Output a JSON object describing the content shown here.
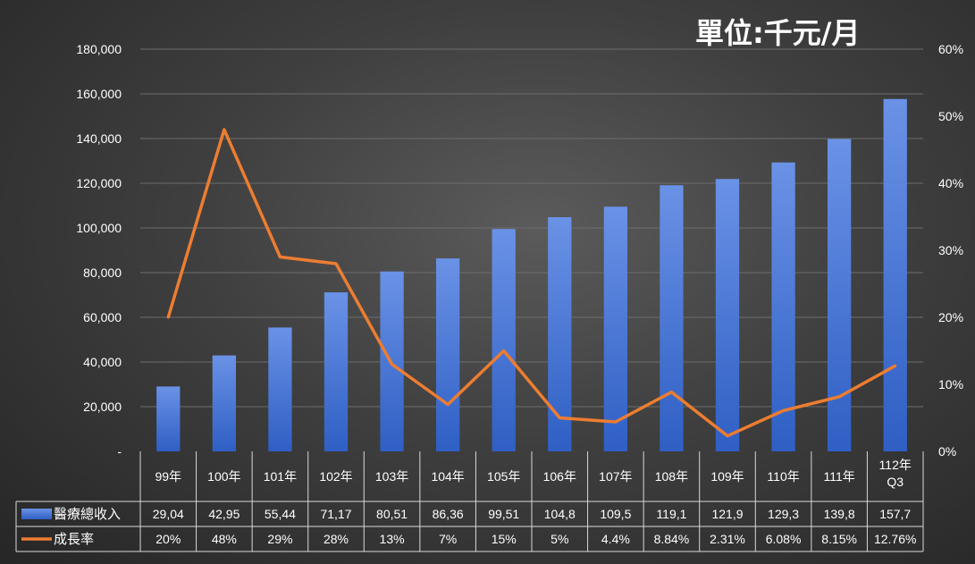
{
  "unit_label": "單位:千元/月",
  "chart_data": {
    "type": "bar",
    "categories": [
      "99年",
      "100年",
      "101年",
      "102年",
      "103年",
      "104年",
      "105年",
      "106年",
      "107年",
      "108年",
      "109年",
      "110年",
      "111年",
      "112年\nQ3"
    ],
    "series": [
      {
        "name": "醫療總收入",
        "type": "bar",
        "axis": "left",
        "color": "#4a78d4",
        "values": [
          29040,
          42950,
          55440,
          71170,
          80510,
          86360,
          99510,
          104800,
          109500,
          119100,
          121900,
          129300,
          139800,
          157700
        ],
        "table_labels": [
          "29,04",
          "42,95",
          "55,44",
          "71,17",
          "80,51",
          "86,36",
          "99,51",
          "104,8",
          "109,5",
          "119,1",
          "121,9",
          "129,3",
          "139,8",
          "157,7"
        ]
      },
      {
        "name": "成長率",
        "type": "line",
        "axis": "right",
        "color": "#ed7d31",
        "values": [
          20,
          48,
          29,
          28,
          13,
          7,
          15,
          5,
          4.4,
          8.84,
          2.31,
          6.08,
          8.15,
          12.76
        ],
        "table_labels": [
          "20%",
          "48%",
          "29%",
          "28%",
          "13%",
          "7%",
          "15%",
          "5%",
          "4.4%",
          "8.84%",
          "2.31%",
          "6.08%",
          "8.15%",
          "12.76%"
        ]
      }
    ],
    "y_left": {
      "min": 0,
      "max": 180000,
      "ticks": [
        "-",
        "20,000",
        "40,000",
        "60,000",
        "80,000",
        "100,000",
        "120,000",
        "140,000",
        "160,000",
        "180,000"
      ]
    },
    "y_right": {
      "min": 0,
      "max": 60,
      "ticks": [
        "0%",
        "10%",
        "20%",
        "30%",
        "40%",
        "50%",
        "60%"
      ]
    },
    "grid": true,
    "data_table": true
  }
}
